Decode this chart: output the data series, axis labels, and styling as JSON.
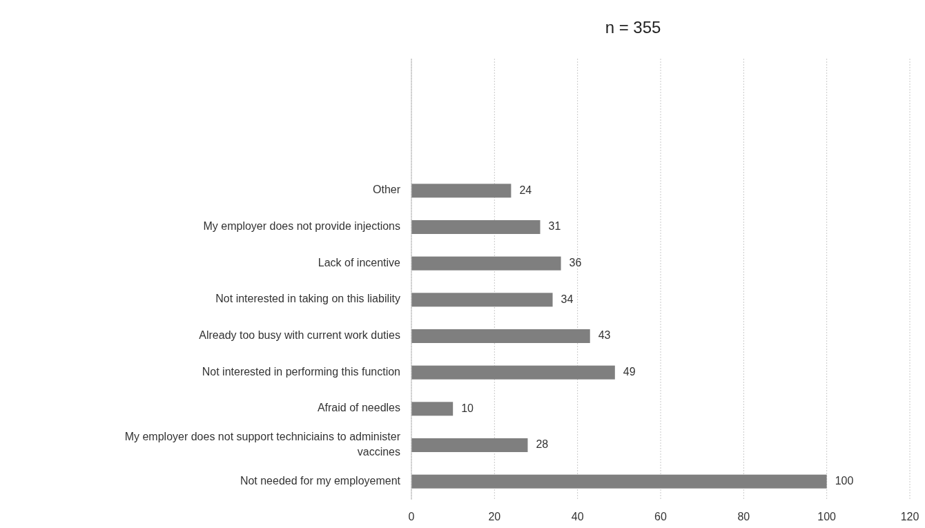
{
  "chart_data": {
    "type": "bar",
    "orientation": "horizontal",
    "title": "n = 355",
    "categories": [
      "Other",
      "My employer does not provide injections",
      "Lack of incentive",
      "Not interested in taking on this liability",
      "Already too busy with current work duties",
      "Not interested in performing this function",
      "Afraid of needles",
      "My employer does not support techniciains to administer vaccines",
      "Not needed for my employement"
    ],
    "values": [
      24,
      31,
      36,
      34,
      43,
      49,
      10,
      28,
      100
    ],
    "color": "#7f7f7f",
    "xlim": [
      0,
      120
    ],
    "xticks": [
      0,
      20,
      40,
      60,
      80,
      100,
      120
    ],
    "grid": "x",
    "data_labels": true
  }
}
